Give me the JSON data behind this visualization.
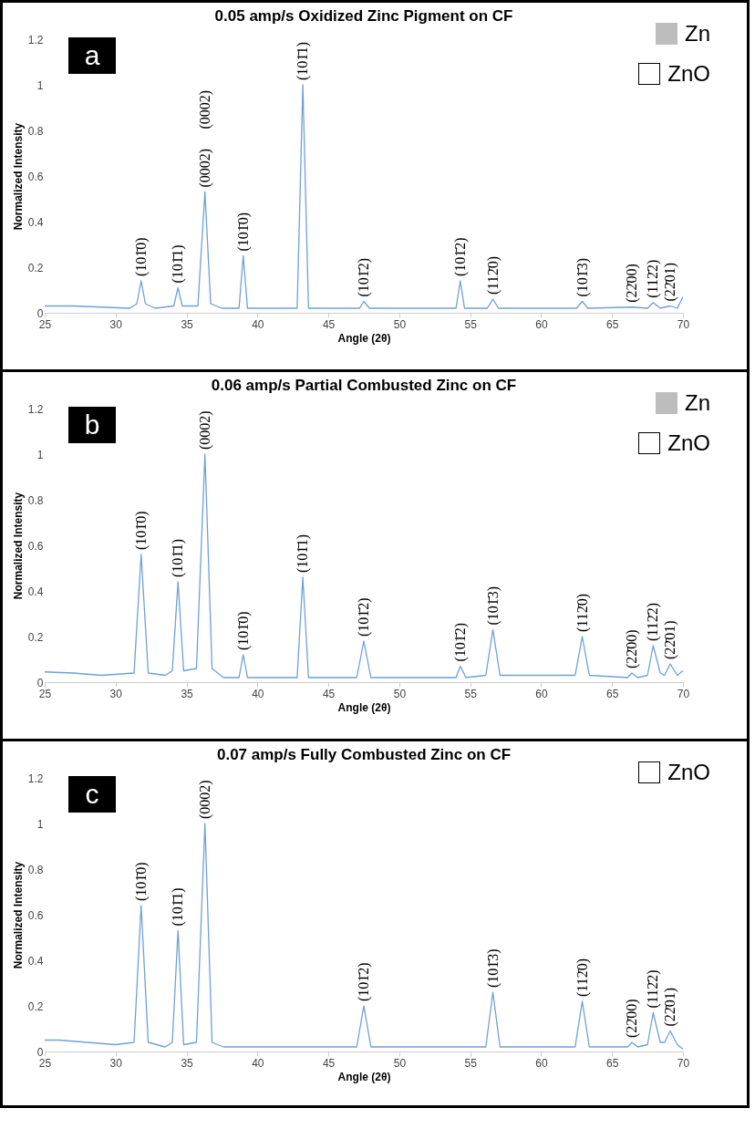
{
  "chart_data": [
    {
      "type": "line",
      "title": "0.05 amp/s Oxidized Zinc Pigment on CF",
      "xlabel": "Angle (2θ)",
      "ylabel": "Normalized Intensity",
      "xlim": [
        25,
        70
      ],
      "xticks": [
        25,
        30,
        35,
        40,
        45,
        50,
        55,
        60,
        65,
        70
      ],
      "ylim": [
        0,
        1.2
      ],
      "yticks": [
        0,
        0.2,
        0.4,
        0.6,
        0.8,
        1,
        1.2
      ],
      "grid": false,
      "marker": "none",
      "line_style": "solid",
      "series": [
        {
          "color": "#6fa0d8",
          "x": [
            25,
            27,
            29,
            31,
            31.5,
            31.8,
            32.1,
            32.8,
            34.1,
            34.4,
            34.7,
            35.8,
            36.3,
            36.7,
            37.5,
            38.7,
            39.0,
            39.3,
            42.8,
            43.2,
            43.6,
            45.7,
            47.2,
            47.5,
            47.9,
            54.0,
            54.3,
            54.6,
            56.2,
            56.6,
            57.0,
            62.5,
            62.9,
            63.3,
            66.4,
            67.5,
            67.9,
            68.4,
            69.1,
            69.6,
            70
          ],
          "values": [
            0.03,
            0.03,
            0.025,
            0.02,
            0.04,
            0.14,
            0.04,
            0.02,
            0.03,
            0.11,
            0.03,
            0.03,
            0.53,
            0.04,
            0.02,
            0.02,
            0.25,
            0.02,
            0.02,
            1.0,
            0.02,
            0.02,
            0.02,
            0.05,
            0.02,
            0.02,
            0.14,
            0.02,
            0.02,
            0.06,
            0.02,
            0.02,
            0.05,
            0.02,
            0.025,
            0.02,
            0.045,
            0.02,
            0.03,
            0.02,
            0.07
          ]
        }
      ],
      "annotations": [
        "a",
        "Zn",
        "ZnO",
        {
          "text": "(101̄0)",
          "x": 31.8,
          "y": 0.14
        },
        {
          "text": "(101̄1)",
          "x": 34.4,
          "y": 0.11
        },
        {
          "text": "(0002)",
          "x": 36.3,
          "y": 0.53
        },
        "(0002)",
        {
          "text": "(101̄0)",
          "x": 39.0,
          "y": 0.25
        },
        {
          "text": "(101̄1)",
          "x": 43.2,
          "y": 1.0
        },
        {
          "text": "(101̄2)",
          "x": 47.5,
          "y": 0.05
        },
        {
          "text": "(101̄2)",
          "x": 54.3,
          "y": 0.14
        },
        {
          "text": "(112̄0)",
          "x": 56.6,
          "y": 0.06
        },
        {
          "text": "(101̄3)",
          "x": 62.9,
          "y": 0.05
        },
        {
          "text": "(22̄00)",
          "x": 66.4,
          "y": 0.025
        },
        {
          "text": "(112̄2)",
          "x": 67.9,
          "y": 0.045
        },
        {
          "text": "(22̄01)",
          "x": 69.1,
          "y": 0.03
        }
      ]
    },
    {
      "type": "line",
      "title": "0.06 amp/s Partial Combusted Zinc on CF",
      "xlabel": "Angle (2θ)",
      "ylabel": "Normalized Intensity",
      "xlim": [
        25,
        70
      ],
      "xticks": [
        25,
        30,
        35,
        40,
        45,
        50,
        55,
        60,
        65,
        70
      ],
      "ylim": [
        0,
        1.2
      ],
      "yticks": [
        0,
        0.2,
        0.4,
        0.6,
        0.8,
        1,
        1.2
      ],
      "grid": false,
      "marker": "none",
      "line_style": "solid",
      "series": [
        {
          "color": "#6fa0d8",
          "x": [
            25,
            27,
            29,
            31.3,
            31.8,
            32.3,
            33.5,
            34.0,
            34.4,
            34.8,
            35.7,
            36.3,
            36.8,
            37.6,
            38.7,
            39.0,
            39.3,
            42.8,
            43.2,
            43.6,
            47.0,
            47.5,
            48.0,
            54.0,
            54.3,
            54.7,
            56.1,
            56.6,
            57.1,
            62.4,
            62.9,
            63.4,
            66.1,
            66.4,
            66.8,
            67.5,
            67.9,
            68.4,
            68.7,
            69.1,
            69.6,
            70
          ],
          "values": [
            0.045,
            0.04,
            0.03,
            0.04,
            0.56,
            0.04,
            0.03,
            0.05,
            0.44,
            0.05,
            0.06,
            1.0,
            0.06,
            0.02,
            0.02,
            0.12,
            0.02,
            0.02,
            0.46,
            0.02,
            0.02,
            0.18,
            0.02,
            0.02,
            0.07,
            0.02,
            0.03,
            0.23,
            0.03,
            0.03,
            0.2,
            0.03,
            0.02,
            0.04,
            0.02,
            0.03,
            0.16,
            0.04,
            0.03,
            0.08,
            0.03,
            0.05
          ]
        }
      ],
      "annotations": [
        "b",
        "Zn",
        "ZnO",
        {
          "text": "(101̄0)",
          "x": 31.8,
          "y": 0.56
        },
        {
          "text": "(101̄1)",
          "x": 34.4,
          "y": 0.44
        },
        {
          "text": "(0002)",
          "x": 36.3,
          "y": 1.0
        },
        {
          "text": "(101̄0)",
          "x": 39.0,
          "y": 0.12
        },
        {
          "text": "(101̄1)",
          "x": 43.2,
          "y": 0.46
        },
        {
          "text": "(101̄2)",
          "x": 47.5,
          "y": 0.18
        },
        {
          "text": "(101̄2)",
          "x": 54.3,
          "y": 0.07
        },
        {
          "text": "(101̄3)",
          "x": 56.6,
          "y": 0.23
        },
        {
          "text": "(112̄0)",
          "x": 62.9,
          "y": 0.2
        },
        {
          "text": "(22̄00)",
          "x": 66.4,
          "y": 0.04
        },
        {
          "text": "(112̄2)",
          "x": 67.9,
          "y": 0.16
        },
        {
          "text": "(22̄01)",
          "x": 69.1,
          "y": 0.08
        }
      ]
    },
    {
      "type": "line",
      "title": "0.07 amp/s Fully Combusted Zinc on CF",
      "xlabel": "Angle (2θ)",
      "ylabel": "Normalized Intensity",
      "xlim": [
        25,
        70
      ],
      "xticks": [
        25,
        30,
        35,
        40,
        45,
        50,
        55,
        60,
        65,
        70
      ],
      "ylim": [
        0,
        1.2
      ],
      "yticks": [
        0,
        0.2,
        0.4,
        0.6,
        0.8,
        1,
        1.2
      ],
      "grid": false,
      "marker": "none",
      "line_style": "solid",
      "series": [
        {
          "color": "#6fa0d8",
          "x": [
            25,
            26,
            28,
            30,
            31.3,
            31.8,
            32.3,
            33.5,
            34.0,
            34.4,
            34.8,
            35.7,
            36.3,
            36.8,
            37.6,
            43.2,
            47.0,
            47.5,
            48.0,
            56.1,
            56.6,
            57.1,
            62.4,
            62.9,
            63.4,
            66.1,
            66.4,
            66.8,
            67.5,
            67.9,
            68.4,
            68.7,
            69.1,
            69.6,
            70
          ],
          "values": [
            0.05,
            0.05,
            0.04,
            0.03,
            0.04,
            0.64,
            0.04,
            0.02,
            0.04,
            0.53,
            0.03,
            0.04,
            1.0,
            0.04,
            0.02,
            0.02,
            0.02,
            0.2,
            0.02,
            0.02,
            0.26,
            0.02,
            0.02,
            0.22,
            0.02,
            0.02,
            0.04,
            0.02,
            0.03,
            0.17,
            0.04,
            0.04,
            0.09,
            0.03,
            0.01
          ]
        }
      ],
      "annotations": [
        "c",
        "ZnO",
        {
          "text": "(101̄0)",
          "x": 31.8,
          "y": 0.64
        },
        {
          "text": "(101̄1)",
          "x": 34.4,
          "y": 0.53
        },
        {
          "text": "(0002)",
          "x": 36.3,
          "y": 1.0
        },
        {
          "text": "(101̄2)",
          "x": 47.5,
          "y": 0.2
        },
        {
          "text": "(101̄3)",
          "x": 56.6,
          "y": 0.26
        },
        {
          "text": "(112̄0)",
          "x": 62.9,
          "y": 0.22
        },
        {
          "text": "(22̄00)",
          "x": 66.4,
          "y": 0.04
        },
        {
          "text": "(112̄2)",
          "x": 67.9,
          "y": 0.17
        },
        {
          "text": "(22̄01)",
          "x": 69.1,
          "y": 0.09
        }
      ]
    }
  ]
}
